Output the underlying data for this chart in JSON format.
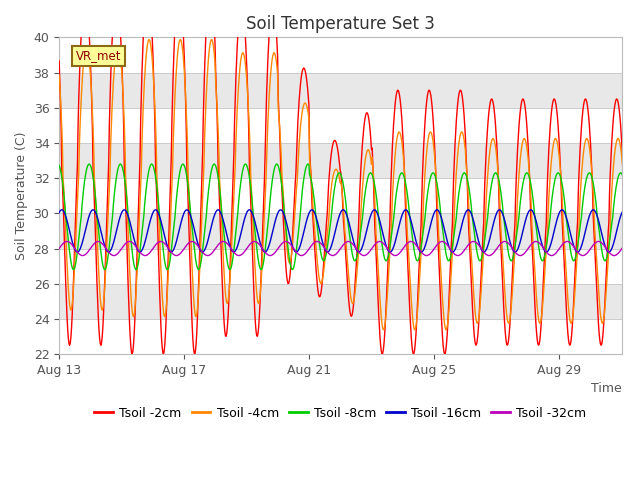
{
  "title": "Soil Temperature Set 3",
  "xlabel": "Time",
  "ylabel": "Soil Temperature (C)",
  "ylim": [
    22,
    40
  ],
  "yticks": [
    22,
    24,
    26,
    28,
    30,
    32,
    34,
    36,
    38,
    40
  ],
  "xtick_labels": [
    "Aug 13",
    "Aug 17",
    "Aug 21",
    "Aug 25",
    "Aug 29"
  ],
  "tick_positions": [
    0,
    4,
    8,
    12,
    16
  ],
  "annotation_text": "VR_met",
  "line_colors": [
    "#ff0000",
    "#ff8800",
    "#00cc00",
    "#0000cc",
    "#bb00bb"
  ],
  "line_labels": [
    "Tsoil -2cm",
    "Tsoil -4cm",
    "Tsoil -8cm",
    "Tsoil -16cm",
    "Tsoil -32cm"
  ],
  "title_fontsize": 12,
  "axis_label_fontsize": 9,
  "tick_fontsize": 9,
  "legend_fontsize": 9
}
